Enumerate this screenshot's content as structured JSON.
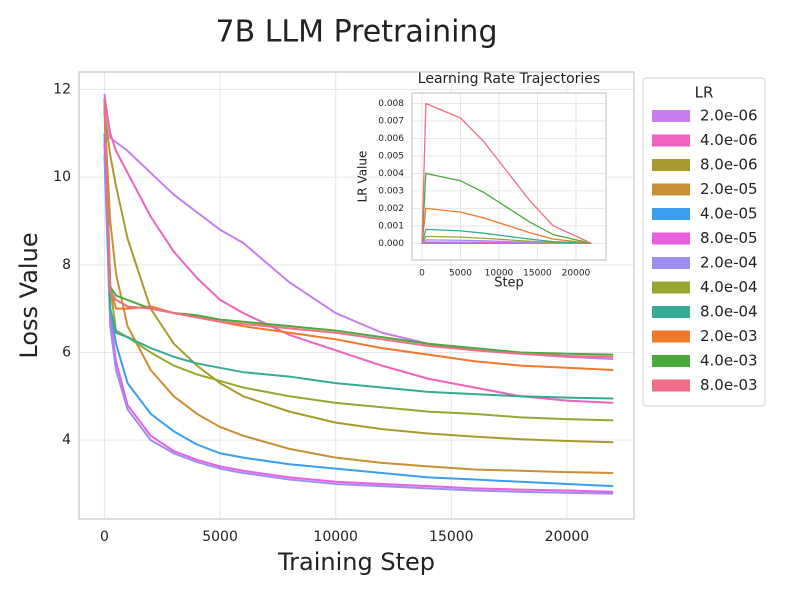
{
  "chart_data": [
    {
      "type": "line",
      "title": "7B LLM Pretraining",
      "xlabel": "Training Step",
      "ylabel": "Loss Value",
      "legend_title": "LR",
      "legend": "right",
      "grid": true,
      "xlim": [
        -1100,
        22900
      ],
      "ylim": [
        2.2,
        12.4
      ],
      "xticks": [
        0,
        5000,
        10000,
        15000,
        20000
      ],
      "yticks": [
        4,
        6,
        8,
        10,
        12
      ],
      "x": [
        0,
        250,
        500,
        1000,
        2000,
        3000,
        4000,
        5000,
        6000,
        8000,
        10000,
        12000,
        14000,
        16000,
        18000,
        20000,
        22000
      ],
      "series": [
        {
          "name": "2.0e-06",
          "color": "#c77cf0",
          "values": [
            11.9,
            10.9,
            10.8,
            10.6,
            10.1,
            9.6,
            9.2,
            8.8,
            8.5,
            7.6,
            6.9,
            6.45,
            6.2,
            6.05,
            5.97,
            5.9,
            5.85
          ]
        },
        {
          "name": "4.0e-06",
          "color": "#f062c0",
          "values": [
            11.8,
            11.0,
            10.6,
            10.1,
            9.1,
            8.3,
            7.7,
            7.2,
            6.9,
            6.4,
            6.05,
            5.7,
            5.4,
            5.2,
            5.0,
            4.9,
            4.85
          ]
        },
        {
          "name": "8.0e-06",
          "color": "#a89b2d",
          "values": [
            11.5,
            10.5,
            9.8,
            8.6,
            7.0,
            6.2,
            5.7,
            5.3,
            5.0,
            4.65,
            4.4,
            4.25,
            4.15,
            4.08,
            4.02,
            3.98,
            3.95
          ]
        },
        {
          "name": "2.0e-05",
          "color": "#c98f35",
          "values": [
            11.5,
            9.0,
            7.8,
            6.6,
            5.6,
            5.0,
            4.6,
            4.3,
            4.1,
            3.8,
            3.6,
            3.48,
            3.4,
            3.33,
            3.3,
            3.27,
            3.25
          ]
        },
        {
          "name": "4.0e-05",
          "color": "#3a9ef0",
          "values": [
            11.0,
            7.0,
            6.2,
            5.3,
            4.6,
            4.2,
            3.9,
            3.7,
            3.6,
            3.45,
            3.35,
            3.25,
            3.15,
            3.1,
            3.05,
            3.0,
            2.95
          ]
        },
        {
          "name": "8.0e-05",
          "color": "#e860e0",
          "values": [
            10.8,
            6.8,
            5.8,
            4.8,
            4.1,
            3.75,
            3.55,
            3.4,
            3.3,
            3.15,
            3.05,
            3.0,
            2.95,
            2.9,
            2.87,
            2.85,
            2.82
          ]
        },
        {
          "name": "2.0e-04",
          "color": "#9b8ef0",
          "values": [
            10.5,
            6.6,
            5.6,
            4.7,
            4.0,
            3.7,
            3.5,
            3.35,
            3.25,
            3.1,
            3.0,
            2.95,
            2.9,
            2.85,
            2.82,
            2.8,
            2.78
          ]
        },
        {
          "name": "4.0e-04",
          "color": "#9aa632",
          "values": [
            11.8,
            7.5,
            6.5,
            6.35,
            6.0,
            5.7,
            5.5,
            5.35,
            5.2,
            5.0,
            4.85,
            4.75,
            4.65,
            4.6,
            4.52,
            4.48,
            4.45
          ]
        },
        {
          "name": "8.0e-04",
          "color": "#35ab93",
          "values": [
            11.8,
            7.0,
            6.45,
            6.35,
            6.1,
            5.9,
            5.75,
            5.65,
            5.55,
            5.45,
            5.3,
            5.2,
            5.1,
            5.05,
            5.0,
            4.97,
            4.95
          ]
        },
        {
          "name": "2.0e-03",
          "color": "#f0782a",
          "values": [
            11.8,
            7.5,
            7.0,
            7.0,
            7.05,
            6.9,
            6.8,
            6.7,
            6.6,
            6.45,
            6.3,
            6.1,
            5.95,
            5.8,
            5.7,
            5.65,
            5.6
          ]
        },
        {
          "name": "4.0e-03",
          "color": "#4aaa3a",
          "values": [
            11.8,
            7.5,
            7.3,
            7.2,
            7.0,
            6.9,
            6.85,
            6.75,
            6.7,
            6.6,
            6.5,
            6.35,
            6.2,
            6.1,
            6.0,
            5.97,
            5.95
          ]
        },
        {
          "name": "8.0e-03",
          "color": "#f06e86",
          "values": [
            11.8,
            7.4,
            7.2,
            7.05,
            7.0,
            6.9,
            6.8,
            6.7,
            6.65,
            6.55,
            6.45,
            6.3,
            6.15,
            6.05,
            5.97,
            5.92,
            5.9
          ]
        }
      ]
    },
    {
      "type": "line",
      "title": "Learning Rate Trajectories",
      "xlabel": "Step",
      "ylabel": "LR Value",
      "grid": true,
      "xlim": [
        -1300,
        23900
      ],
      "ylim": [
        -0.00095,
        0.0086
      ],
      "xticks": [
        0,
        5000,
        10000,
        15000,
        20000
      ],
      "yticks": [
        {
          "value": 0,
          "label": "0.000"
        },
        {
          "value": 0.001,
          "label": "0.001"
        },
        {
          "value": 0.002,
          "label": "0.002"
        },
        {
          "value": 0.003,
          "label": "0.003"
        },
        {
          "value": 0.004,
          "label": "0.004"
        },
        {
          "value": 0.005,
          "label": "0.005"
        },
        {
          "value": 0.006,
          "label": "0.006"
        },
        {
          "value": 0.007,
          "label": "0.007"
        },
        {
          "value": 0.008,
          "label": "0.008"
        }
      ],
      "x": [
        0,
        500,
        5000,
        8000,
        11000,
        14000,
        17000,
        22000
      ],
      "series": [
        {
          "color": "#c77cf0",
          "values": [
            0,
            2e-06,
            1.79e-06,
            1.46e-06,
            1.04e-06,
            6.1e-07,
            2.5e-07,
            0
          ]
        },
        {
          "color": "#f062c0",
          "values": [
            0,
            4e-06,
            3.58e-06,
            2.92e-06,
            2.07e-06,
            1.22e-06,
            5.1e-07,
            0
          ]
        },
        {
          "color": "#a89b2d",
          "values": [
            0,
            8e-06,
            7.17e-06,
            5.83e-06,
            4.14e-06,
            2.44e-06,
            1.02e-06,
            0
          ]
        },
        {
          "color": "#c98f35",
          "values": [
            0,
            2e-05,
            1.79e-05,
            1.46e-05,
            1.04e-05,
            6.1e-06,
            2.5e-06,
            0
          ]
        },
        {
          "color": "#3a9ef0",
          "values": [
            0,
            4e-05,
            3.58e-05,
            2.92e-05,
            2.07e-05,
            1.22e-05,
            5.1e-06,
            0
          ]
        },
        {
          "color": "#e860e0",
          "values": [
            0,
            8e-05,
            7.17e-05,
            5.83e-05,
            4.14e-05,
            2.44e-05,
            1.02e-05,
            0
          ]
        },
        {
          "color": "#9b8ef0",
          "values": [
            0,
            0.0002,
            0.000179,
            0.000146,
            0.000104,
            6.1e-05,
            2.5e-05,
            0
          ]
        },
        {
          "color": "#9aa632",
          "values": [
            0,
            0.0004,
            0.000358,
            0.000292,
            0.000207,
            0.000122,
            5.1e-05,
            0
          ]
        },
        {
          "color": "#35ab93",
          "values": [
            0,
            0.0008,
            0.000717,
            0.000583,
            0.000414,
            0.000244,
            0.000102,
            0
          ]
        },
        {
          "color": "#f0782a",
          "values": [
            0,
            0.002,
            0.00179,
            0.00146,
            0.00104,
            0.00061,
            0.00025,
            0
          ]
        },
        {
          "color": "#4aaa3a",
          "values": [
            0,
            0.004,
            0.00358,
            0.00292,
            0.00207,
            0.00122,
            0.00051,
            0
          ]
        },
        {
          "color": "#f06e86",
          "values": [
            0,
            0.008,
            0.00717,
            0.00583,
            0.00414,
            0.00244,
            0.00102,
            0
          ]
        }
      ]
    }
  ]
}
